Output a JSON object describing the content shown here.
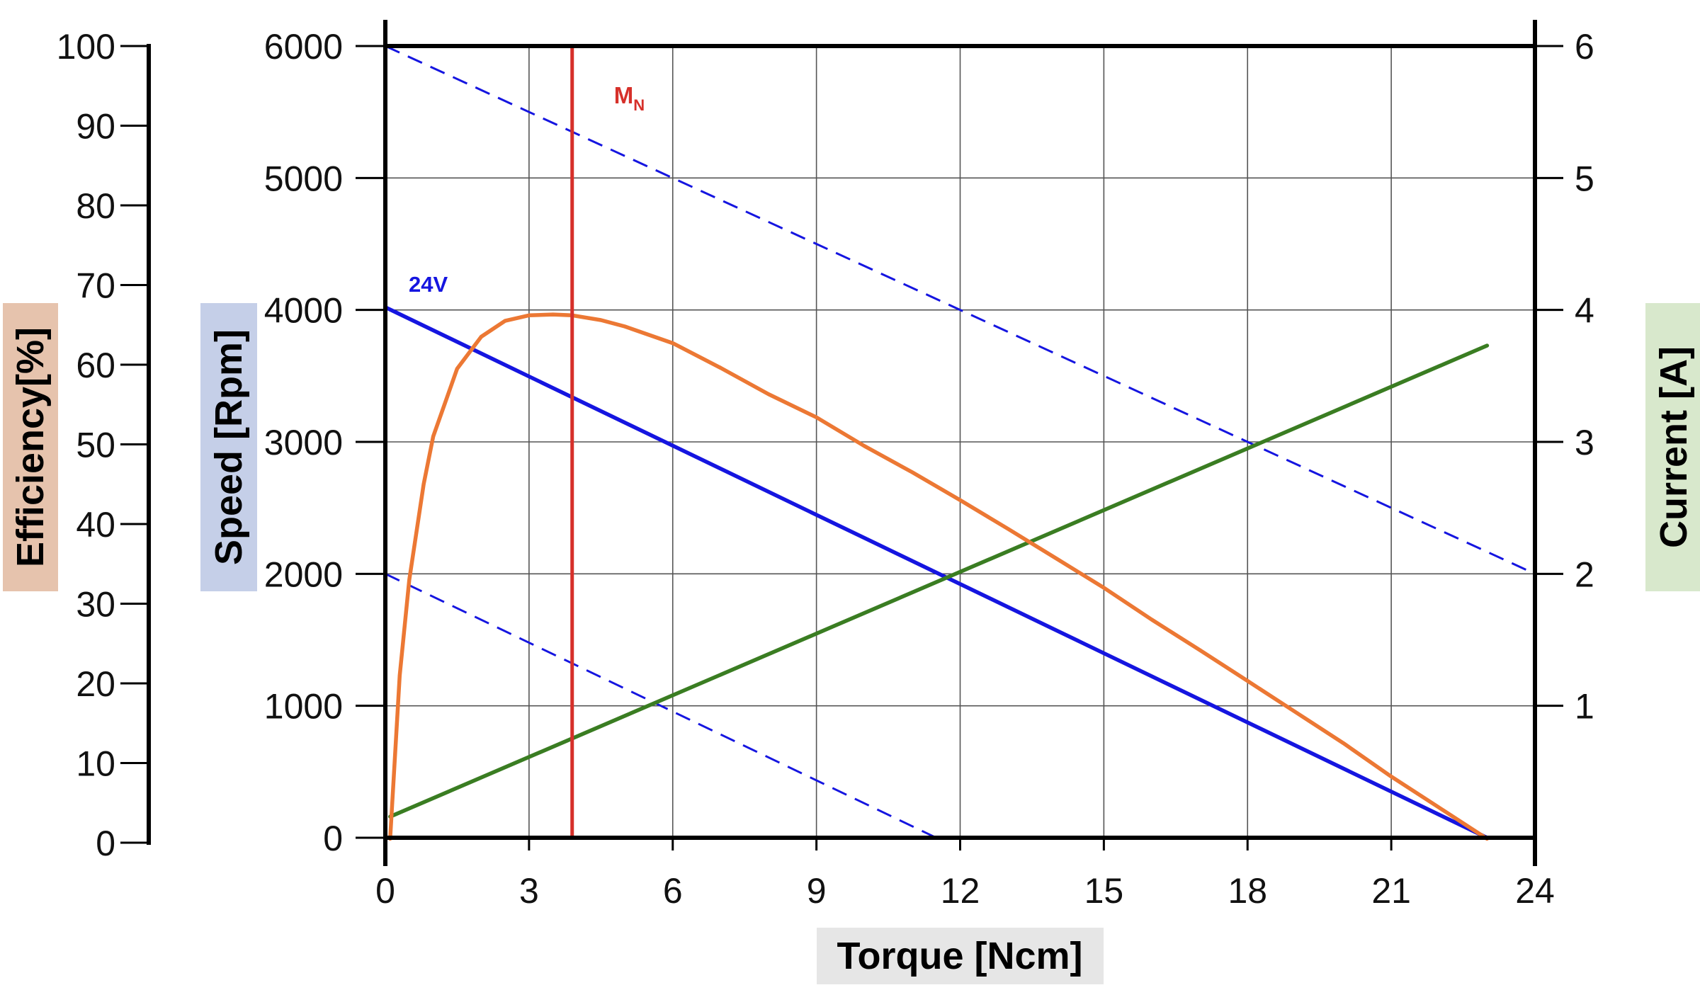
{
  "chart_data": {
    "type": "line",
    "x": {
      "label": "Torque [Ncm]",
      "range": [
        0,
        24
      ],
      "ticks": [
        0,
        3,
        6,
        9,
        12,
        15,
        18,
        21,
        24
      ],
      "tick_labels": [
        "0",
        "3",
        "6",
        "9",
        "12",
        "15",
        "18",
        "21",
        "24"
      ]
    },
    "y_axes": {
      "efficiency": {
        "label": "Efficiency[%]",
        "range": [
          0,
          100
        ],
        "ticks": [
          0,
          10,
          20,
          30,
          40,
          50,
          60,
          70,
          80,
          90,
          100
        ],
        "tick_labels": [
          "0",
          "10",
          "20",
          "30",
          "40",
          "50",
          "60",
          "70",
          "80",
          "90",
          "100"
        ],
        "label_bg": "#e6c3ad"
      },
      "speed": {
        "label": "Speed [Rpm]",
        "range": [
          0,
          6000
        ],
        "ticks": [
          0,
          1000,
          2000,
          3000,
          4000,
          5000,
          6000
        ],
        "tick_labels": [
          "0",
          "1000",
          "2000",
          "3000",
          "4000",
          "5000",
          "6000"
        ],
        "label_bg": "#c5cfe8"
      },
      "current": {
        "label": "Current [A]",
        "range": [
          0,
          6
        ],
        "ticks": [
          1,
          2,
          3,
          4,
          5,
          6
        ],
        "tick_labels": [
          "1",
          "2",
          "3",
          "4",
          "5",
          "6"
        ],
        "label_bg": "#d8e8cc"
      }
    },
    "x_label_bg": "#e6e6e6",
    "grid": true,
    "series": [
      {
        "name": "Speed 24V",
        "label": "24V",
        "axis": "speed",
        "color": "#1515e0",
        "style": "solid",
        "x": [
          0,
          23
        ],
        "y": [
          4020,
          0
        ]
      },
      {
        "name": "Speed upper (dashed)",
        "axis": "speed",
        "color": "#1515e0",
        "style": "dashed",
        "x": [
          0,
          24
        ],
        "y": [
          6000,
          2000
        ]
      },
      {
        "name": "Speed lower (dashed)",
        "axis": "speed",
        "color": "#1515e0",
        "style": "dashed",
        "x": [
          0,
          11.5
        ],
        "y": [
          2000,
          0
        ]
      },
      {
        "name": "Current",
        "axis": "current",
        "color": "#3a7d22",
        "style": "solid",
        "x": [
          0.1,
          23
        ],
        "y": [
          0.16,
          3.73
        ]
      },
      {
        "name": "Efficiency",
        "axis": "efficiency",
        "color": "#ec7834",
        "style": "solid",
        "x": [
          0.1,
          0.3,
          0.5,
          0.8,
          1.0,
          1.5,
          2.0,
          2.5,
          3.0,
          3.5,
          3.9,
          4.5,
          5.0,
          6.0,
          7.0,
          8.0,
          9.0,
          10.0,
          11.0,
          12.0,
          13.0,
          14.0,
          15.0,
          16.0,
          17.0,
          18.0,
          19.0,
          20.0,
          21.0,
          22.0,
          23.0
        ],
        "y": [
          0.5,
          21,
          33,
          45,
          51,
          59.5,
          63.5,
          65.5,
          66.2,
          66.3,
          66.2,
          65.6,
          64.8,
          62.7,
          59.6,
          56.3,
          53.4,
          49.8,
          46.5,
          43.0,
          39.4,
          35.7,
          32.0,
          28.0,
          24.2,
          20.3,
          16.4,
          12.5,
          8.3,
          4.4,
          0.5
        ]
      }
    ],
    "annotations": [
      {
        "name": "Rated torque",
        "label": "M",
        "subscript": "N",
        "x": 3.9,
        "color": "#d6302a"
      }
    ]
  }
}
